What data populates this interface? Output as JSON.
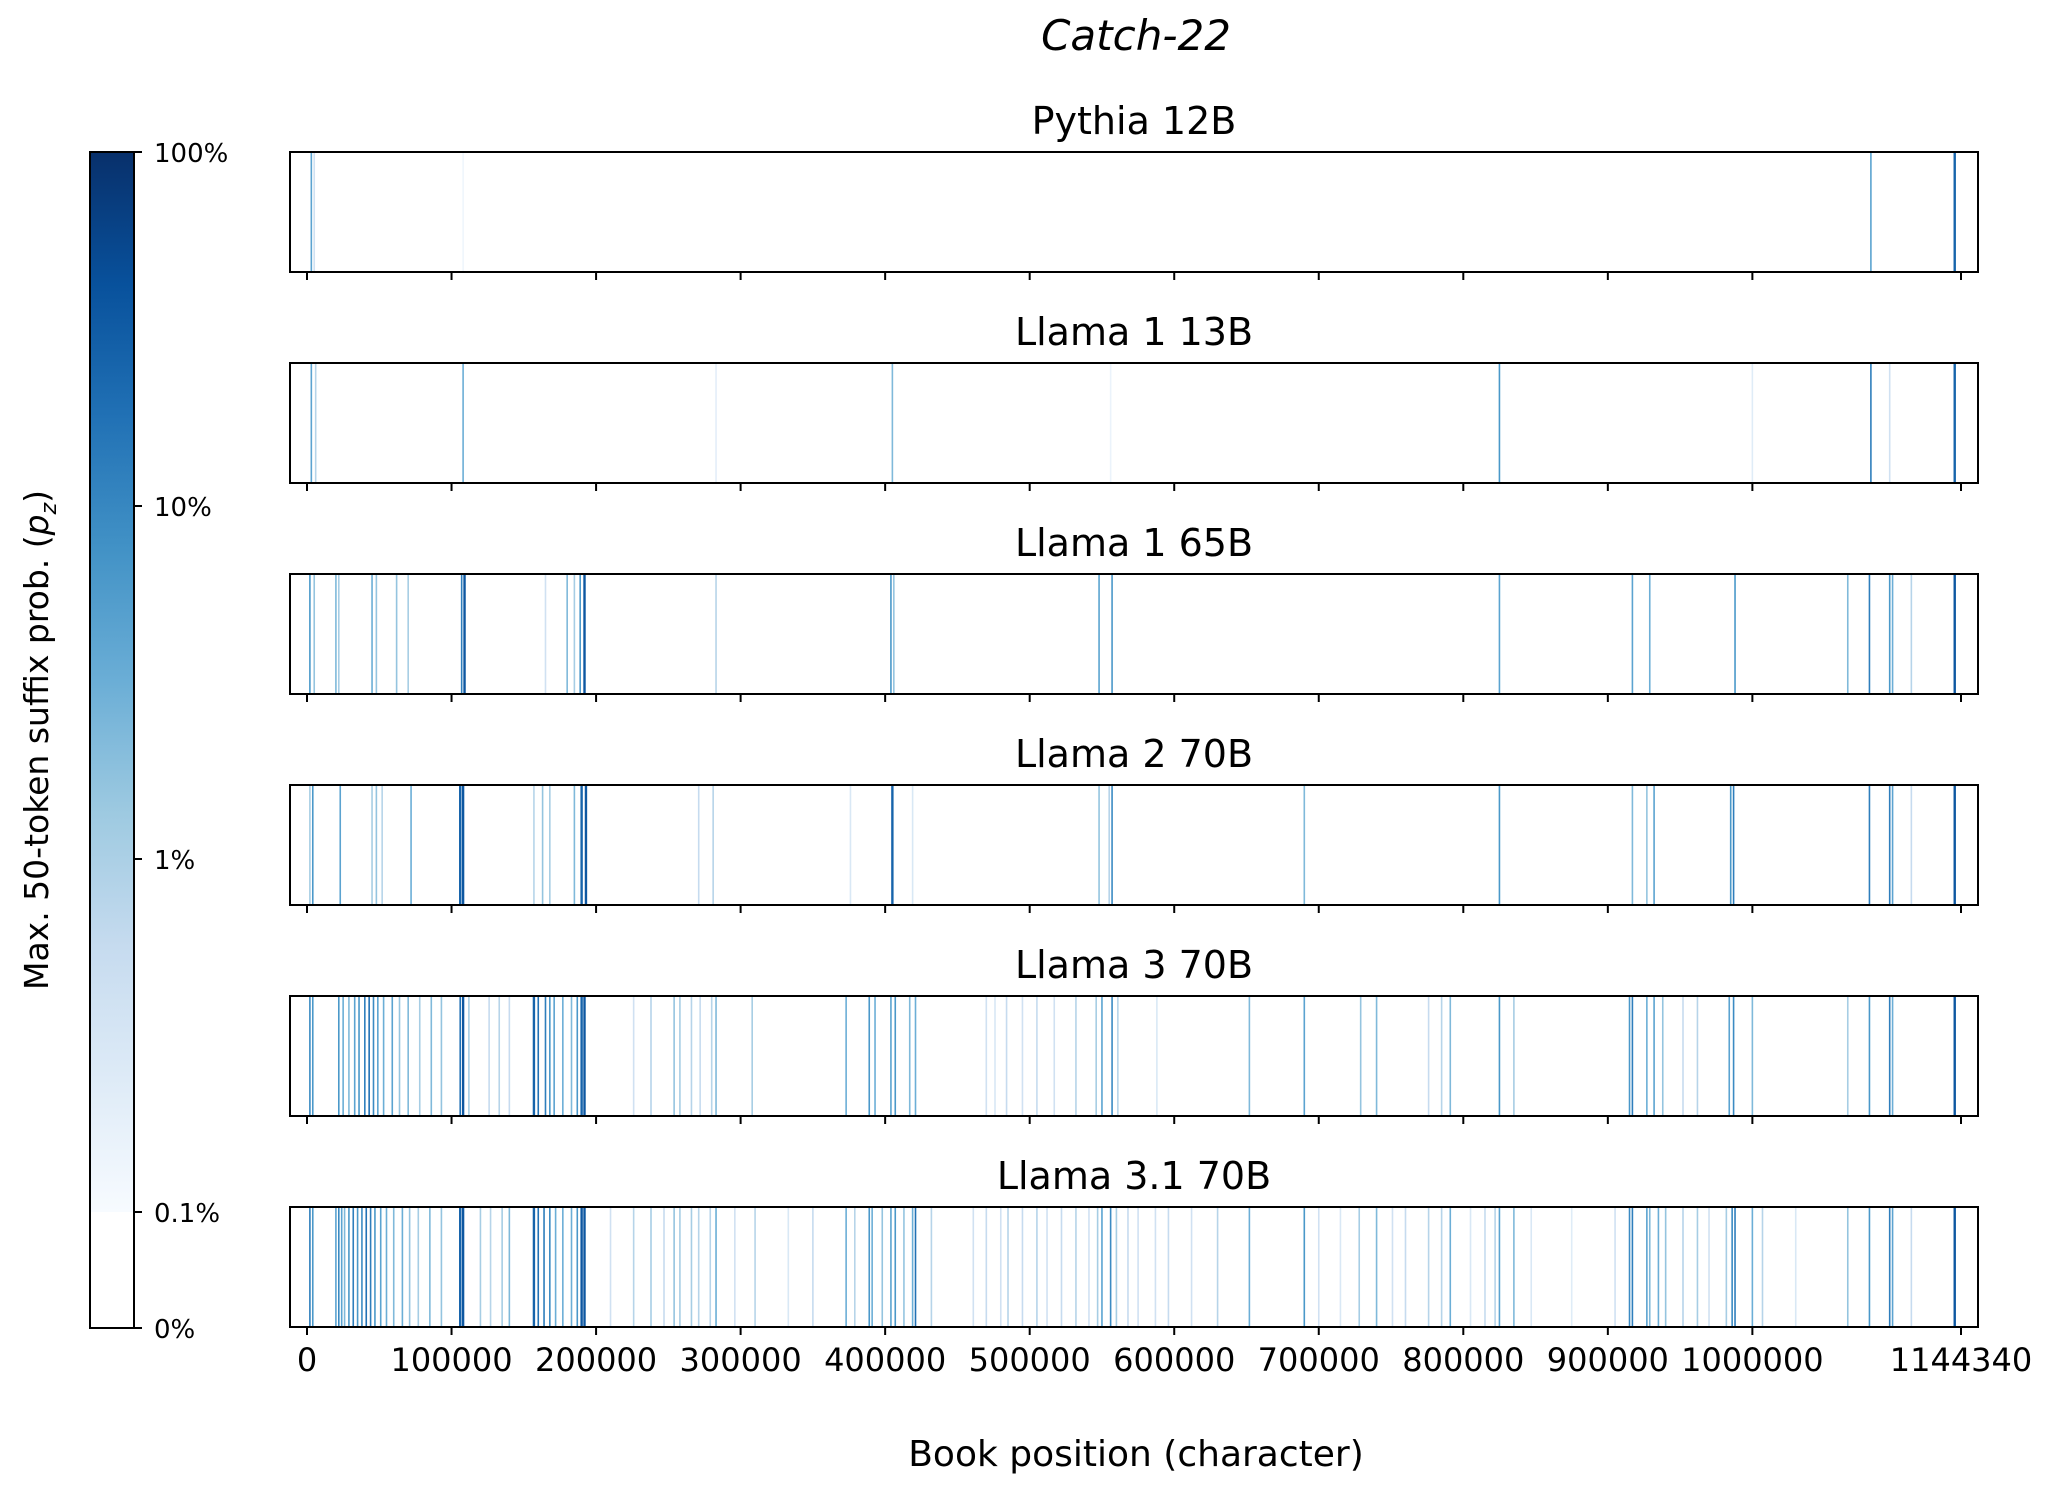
{
  "chart_data": {
    "type": "heatmap",
    "title": "Catch-22",
    "xlabel": "Book position (character)",
    "colorbar": {
      "label_prefix": "Max. 50-token suffix prob. (",
      "label_symbol": "p",
      "label_subscript": "z",
      "label_suffix": ")",
      "ticks": [
        "0%",
        "0.1%",
        "1%",
        "10%",
        "100%"
      ],
      "colormap": "Blues",
      "colors": [
        "#f7fbff",
        "#deebf7",
        "#c6dbef",
        "#9ecae1",
        "#6baed6",
        "#4292c6",
        "#2171b5",
        "#08519c",
        "#08306b"
      ]
    },
    "xlim": [
      0,
      1144340
    ],
    "x_ticks": [
      0,
      100000,
      200000,
      300000,
      400000,
      500000,
      600000,
      700000,
      800000,
      900000,
      1000000,
      1144340
    ],
    "x_tick_labels": [
      "0",
      "100000",
      "200000",
      "300000",
      "400000",
      "500000",
      "600000",
      "700000",
      "800000",
      "900000",
      "1000000",
      "1144340"
    ],
    "panels": [
      {
        "name": "Pythia 12B",
        "marks": [
          [
            3000,
            0.55
          ],
          [
            5000,
            0.2
          ],
          [
            108000,
            0.04
          ],
          [
            1082000,
            0.55
          ],
          [
            1140000,
            0.8
          ]
        ]
      },
      {
        "name": "Llama 1 13B",
        "marks": [
          [
            3000,
            0.55
          ],
          [
            6000,
            0.3
          ],
          [
            108000,
            0.5
          ],
          [
            283000,
            0.1
          ],
          [
            405000,
            0.45
          ],
          [
            556000,
            0.06
          ],
          [
            825000,
            0.6
          ],
          [
            1000000,
            0.12
          ],
          [
            1082000,
            0.7
          ],
          [
            1095000,
            0.2
          ],
          [
            1140000,
            0.8
          ]
        ]
      },
      {
        "name": "Llama 1 65B",
        "marks": [
          [
            2000,
            0.6
          ],
          [
            5000,
            0.4
          ],
          [
            20000,
            0.45
          ],
          [
            22000,
            0.35
          ],
          [
            45000,
            0.5
          ],
          [
            48000,
            0.4
          ],
          [
            62000,
            0.4
          ],
          [
            70000,
            0.35
          ],
          [
            107000,
            0.7
          ],
          [
            109000,
            0.85
          ],
          [
            165000,
            0.2
          ],
          [
            180000,
            0.45
          ],
          [
            185000,
            0.35
          ],
          [
            189000,
            0.6
          ],
          [
            192000,
            0.85
          ],
          [
            283000,
            0.3
          ],
          [
            404000,
            0.6
          ],
          [
            406000,
            0.4
          ],
          [
            548000,
            0.55
          ],
          [
            557000,
            0.6
          ],
          [
            825000,
            0.55
          ],
          [
            917000,
            0.55
          ],
          [
            929000,
            0.5
          ],
          [
            988000,
            0.6
          ],
          [
            1066000,
            0.45
          ],
          [
            1081000,
            0.7
          ],
          [
            1095000,
            0.6
          ],
          [
            1097000,
            0.5
          ],
          [
            1110000,
            0.3
          ],
          [
            1140000,
            0.85
          ]
        ]
      },
      {
        "name": "Llama 2 70B",
        "marks": [
          [
            2000,
            0.35
          ],
          [
            4000,
            0.6
          ],
          [
            23000,
            0.55
          ],
          [
            45000,
            0.35
          ],
          [
            48000,
            0.4
          ],
          [
            52000,
            0.3
          ],
          [
            72000,
            0.5
          ],
          [
            106000,
            0.8
          ],
          [
            108000,
            0.85
          ],
          [
            157000,
            0.3
          ],
          [
            163000,
            0.4
          ],
          [
            168000,
            0.35
          ],
          [
            185000,
            0.45
          ],
          [
            190000,
            0.8
          ],
          [
            193000,
            0.85
          ],
          [
            271000,
            0.25
          ],
          [
            281000,
            0.3
          ],
          [
            376000,
            0.15
          ],
          [
            405000,
            0.8
          ],
          [
            419000,
            0.15
          ],
          [
            548000,
            0.4
          ],
          [
            555000,
            0.3
          ],
          [
            557000,
            0.65
          ],
          [
            690000,
            0.45
          ],
          [
            825000,
            0.6
          ],
          [
            917000,
            0.45
          ],
          [
            927000,
            0.4
          ],
          [
            932000,
            0.55
          ],
          [
            985000,
            0.6
          ],
          [
            987000,
            0.7
          ],
          [
            1081000,
            0.7
          ],
          [
            1095000,
            0.7
          ],
          [
            1097000,
            0.55
          ],
          [
            1110000,
            0.25
          ],
          [
            1140000,
            0.85
          ]
        ]
      },
      {
        "name": "Llama 3 70B",
        "marks": [
          [
            2000,
            0.65
          ],
          [
            4000,
            0.6
          ],
          [
            22000,
            0.6
          ],
          [
            25000,
            0.5
          ],
          [
            29000,
            0.45
          ],
          [
            33000,
            0.55
          ],
          [
            36000,
            0.6
          ],
          [
            40000,
            0.7
          ],
          [
            43000,
            0.75
          ],
          [
            46000,
            0.65
          ],
          [
            49000,
            0.55
          ],
          [
            53000,
            0.5
          ],
          [
            59000,
            0.55
          ],
          [
            64000,
            0.4
          ],
          [
            70000,
            0.45
          ],
          [
            78000,
            0.35
          ],
          [
            86000,
            0.45
          ],
          [
            93000,
            0.4
          ],
          [
            106000,
            0.75
          ],
          [
            108000,
            0.85
          ],
          [
            112000,
            0.35
          ],
          [
            126000,
            0.25
          ],
          [
            133000,
            0.3
          ],
          [
            140000,
            0.25
          ],
          [
            157000,
            0.8
          ],
          [
            160000,
            0.75
          ],
          [
            165000,
            0.7
          ],
          [
            168000,
            0.6
          ],
          [
            171000,
            0.55
          ],
          [
            177000,
            0.5
          ],
          [
            183000,
            0.45
          ],
          [
            187000,
            0.6
          ],
          [
            190000,
            0.8
          ],
          [
            192000,
            0.85
          ],
          [
            226000,
            0.2
          ],
          [
            238000,
            0.3
          ],
          [
            254000,
            0.4
          ],
          [
            258000,
            0.35
          ],
          [
            266000,
            0.3
          ],
          [
            272000,
            0.25
          ],
          [
            280000,
            0.3
          ],
          [
            283000,
            0.45
          ],
          [
            308000,
            0.35
          ],
          [
            373000,
            0.5
          ],
          [
            389000,
            0.6
          ],
          [
            393000,
            0.5
          ],
          [
            404000,
            0.55
          ],
          [
            407000,
            0.6
          ],
          [
            417000,
            0.45
          ],
          [
            421000,
            0.5
          ],
          [
            470000,
            0.2
          ],
          [
            476000,
            0.15
          ],
          [
            484000,
            0.25
          ],
          [
            495000,
            0.2
          ],
          [
            505000,
            0.25
          ],
          [
            517000,
            0.2
          ],
          [
            532000,
            0.3
          ],
          [
            546000,
            0.35
          ],
          [
            550000,
            0.55
          ],
          [
            557000,
            0.65
          ],
          [
            561000,
            0.3
          ],
          [
            588000,
            0.15
          ],
          [
            652000,
            0.45
          ],
          [
            690000,
            0.55
          ],
          [
            729000,
            0.4
          ],
          [
            740000,
            0.45
          ],
          [
            776000,
            0.25
          ],
          [
            785000,
            0.3
          ],
          [
            791000,
            0.45
          ],
          [
            825000,
            0.6
          ],
          [
            835000,
            0.35
          ],
          [
            915000,
            0.6
          ],
          [
            917000,
            0.7
          ],
          [
            927000,
            0.5
          ],
          [
            932000,
            0.55
          ],
          [
            938000,
            0.4
          ],
          [
            952000,
            0.25
          ],
          [
            962000,
            0.3
          ],
          [
            984000,
            0.55
          ],
          [
            987000,
            0.65
          ],
          [
            1000000,
            0.45
          ],
          [
            1066000,
            0.35
          ],
          [
            1081000,
            0.6
          ],
          [
            1095000,
            0.7
          ],
          [
            1097000,
            0.5
          ],
          [
            1140000,
            0.85
          ]
        ]
      },
      {
        "name": "Llama 3.1 70B",
        "marks": [
          [
            2000,
            0.7
          ],
          [
            4000,
            0.6
          ],
          [
            20000,
            0.55
          ],
          [
            22000,
            0.65
          ],
          [
            24000,
            0.55
          ],
          [
            26000,
            0.45
          ],
          [
            29000,
            0.6
          ],
          [
            32000,
            0.7
          ],
          [
            35000,
            0.6
          ],
          [
            38000,
            0.65
          ],
          [
            41000,
            0.75
          ],
          [
            44000,
            0.7
          ],
          [
            47000,
            0.6
          ],
          [
            51000,
            0.55
          ],
          [
            55000,
            0.5
          ],
          [
            60000,
            0.45
          ],
          [
            66000,
            0.5
          ],
          [
            71000,
            0.4
          ],
          [
            77000,
            0.35
          ],
          [
            85000,
            0.45
          ],
          [
            93000,
            0.4
          ],
          [
            106000,
            0.8
          ],
          [
            108000,
            0.85
          ],
          [
            120000,
            0.35
          ],
          [
            127000,
            0.3
          ],
          [
            135000,
            0.35
          ],
          [
            140000,
            0.45
          ],
          [
            157000,
            0.8
          ],
          [
            160000,
            0.75
          ],
          [
            164000,
            0.7
          ],
          [
            168000,
            0.65
          ],
          [
            172000,
            0.5
          ],
          [
            177000,
            0.5
          ],
          [
            183000,
            0.5
          ],
          [
            187000,
            0.6
          ],
          [
            190000,
            0.85
          ],
          [
            192000,
            0.85
          ],
          [
            210000,
            0.2
          ],
          [
            226000,
            0.3
          ],
          [
            238000,
            0.35
          ],
          [
            247000,
            0.25
          ],
          [
            254000,
            0.4
          ],
          [
            258000,
            0.35
          ],
          [
            266000,
            0.35
          ],
          [
            271000,
            0.3
          ],
          [
            279000,
            0.3
          ],
          [
            283000,
            0.5
          ],
          [
            296000,
            0.2
          ],
          [
            310000,
            0.3
          ],
          [
            333000,
            0.15
          ],
          [
            350000,
            0.25
          ],
          [
            373000,
            0.5
          ],
          [
            379000,
            0.3
          ],
          [
            389000,
            0.6
          ],
          [
            391000,
            0.5
          ],
          [
            398000,
            0.4
          ],
          [
            404000,
            0.55
          ],
          [
            407000,
            0.6
          ],
          [
            413000,
            0.4
          ],
          [
            419000,
            0.5
          ],
          [
            421000,
            0.75
          ],
          [
            432000,
            0.3
          ],
          [
            461000,
            0.2
          ],
          [
            470000,
            0.25
          ],
          [
            480000,
            0.2
          ],
          [
            485000,
            0.3
          ],
          [
            495000,
            0.25
          ],
          [
            505000,
            0.3
          ],
          [
            512000,
            0.2
          ],
          [
            522000,
            0.25
          ],
          [
            532000,
            0.3
          ],
          [
            541000,
            0.2
          ],
          [
            547000,
            0.35
          ],
          [
            550000,
            0.55
          ],
          [
            556000,
            0.65
          ],
          [
            560000,
            0.35
          ],
          [
            568000,
            0.25
          ],
          [
            575000,
            0.2
          ],
          [
            587000,
            0.2
          ],
          [
            596000,
            0.25
          ],
          [
            612000,
            0.2
          ],
          [
            630000,
            0.3
          ],
          [
            652000,
            0.5
          ],
          [
            690000,
            0.6
          ],
          [
            700000,
            0.2
          ],
          [
            715000,
            0.15
          ],
          [
            728000,
            0.35
          ],
          [
            740000,
            0.45
          ],
          [
            751000,
            0.2
          ],
          [
            760000,
            0.25
          ],
          [
            776000,
            0.3
          ],
          [
            785000,
            0.3
          ],
          [
            791000,
            0.5
          ],
          [
            805000,
            0.15
          ],
          [
            815000,
            0.25
          ],
          [
            822000,
            0.3
          ],
          [
            825000,
            0.55
          ],
          [
            835000,
            0.45
          ],
          [
            847000,
            0.15
          ],
          [
            875000,
            0.12
          ],
          [
            905000,
            0.2
          ],
          [
            915000,
            0.65
          ],
          [
            917000,
            0.7
          ],
          [
            927000,
            0.55
          ],
          [
            929000,
            0.45
          ],
          [
            935000,
            0.5
          ],
          [
            940000,
            0.4
          ],
          [
            952000,
            0.3
          ],
          [
            962000,
            0.35
          ],
          [
            970000,
            0.2
          ],
          [
            982000,
            0.35
          ],
          [
            986000,
            0.65
          ],
          [
            988000,
            0.7
          ],
          [
            1000000,
            0.5
          ],
          [
            1007000,
            0.3
          ],
          [
            1030000,
            0.15
          ],
          [
            1066000,
            0.4
          ],
          [
            1081000,
            0.6
          ],
          [
            1095000,
            0.7
          ],
          [
            1097000,
            0.55
          ],
          [
            1110000,
            0.25
          ],
          [
            1140000,
            0.85
          ]
        ]
      }
    ]
  }
}
